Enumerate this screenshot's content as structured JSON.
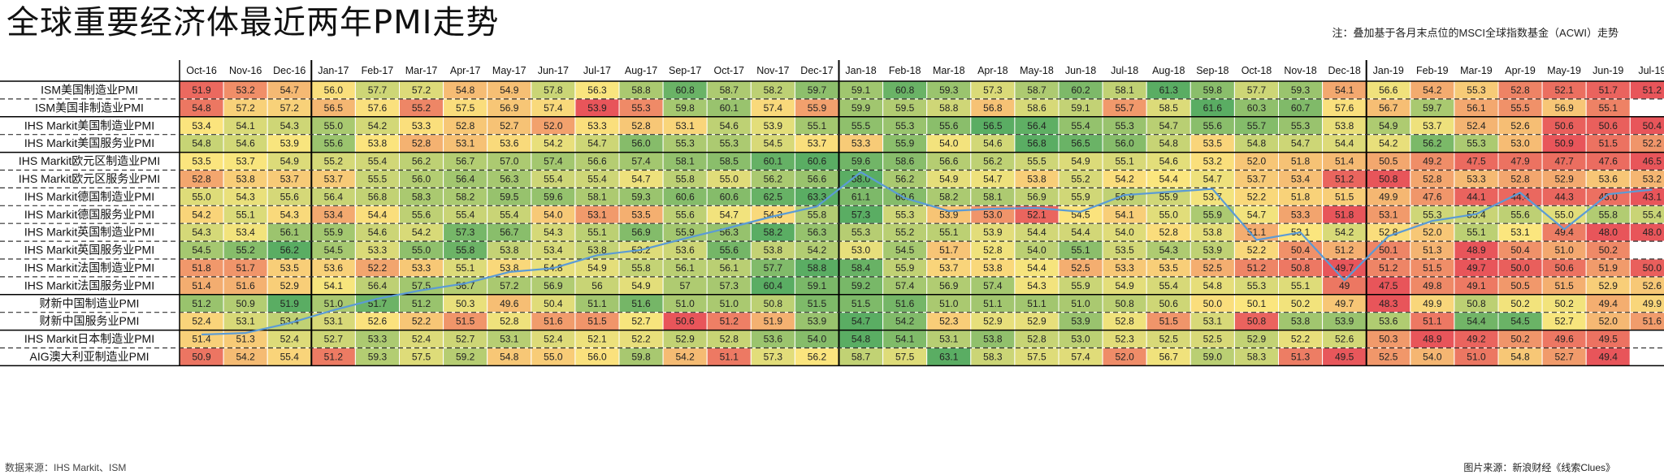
{
  "title": "全球重要经济体最近两年PMI走势",
  "note": "注：叠加基于各月末点位的MSCI全球指数基金（ACWI）走势",
  "source_left": "数据来源：IHS Markit、ISM",
  "source_right": "图片来源：新浪财经《线索Clues》",
  "colors": {
    "low": "#e8555a",
    "mid": "#fbe67e",
    "high": "#5aad63",
    "line": "#5b9bd5"
  },
  "chart_data": {
    "type": "heatmap",
    "columns": [
      "Oct-16",
      "Nov-16",
      "Dec-16",
      "Jan-17",
      "Feb-17",
      "Mar-17",
      "Apr-17",
      "May-17",
      "Jun-17",
      "Jul-17",
      "Aug-17",
      "Sep-17",
      "Oct-17",
      "Nov-17",
      "Dec-17",
      "Jan-18",
      "Feb-18",
      "Mar-18",
      "Apr-18",
      "May-18",
      "Jun-18",
      "Jul-18",
      "Aug-18",
      "Sep-18",
      "Oct-18",
      "Nov-18",
      "Dec-18",
      "Jan-19",
      "Feb-19",
      "Mar-19",
      "Apr-19",
      "May-19",
      "Jun-19",
      "Jul-19"
    ],
    "rows": [
      {
        "label": "ISM美国制造业PMI",
        "values": [
          "51.9",
          "53.2",
          "54.7",
          "56.0",
          "57.7",
          "57.2",
          "54.8",
          "54.9",
          "57.8",
          "56.3",
          "58.8",
          "60.8",
          "58.7",
          "58.2",
          "59.7",
          "59.1",
          "60.8",
          "59.3",
          "57.3",
          "58.7",
          "60.2",
          "58.1",
          "61.3",
          "59.8",
          "57.7",
          "59.3",
          "54.1",
          "56.6",
          "54.2",
          "55.3",
          "52.8",
          "52.1",
          "51.7",
          "51.2"
        ]
      },
      {
        "label": "ISM美国非制造业PMI",
        "values": [
          "54.8",
          "57.2",
          "57.2",
          "56.5",
          "57.6",
          "55.2",
          "57.5",
          "56.9",
          "57.4",
          "53.9",
          "55.3",
          "59.8",
          "60.1",
          "57.4",
          "55.9",
          "59.9",
          "59.5",
          "58.8",
          "56.8",
          "58.6",
          "59.1",
          "55.7",
          "58.5",
          "61.6",
          "60.3",
          "60.7",
          "57.6",
          "56.7",
          "59.7",
          "56.1",
          "55.5",
          "56.9",
          "55.1",
          ""
        ]
      },
      {
        "label": "IHS Markit美国制造业PMI",
        "values": [
          "53.4",
          "54.1",
          "54.3",
          "55.0",
          "54.2",
          "53.3",
          "52.8",
          "52.7",
          "52.0",
          "53.3",
          "52.8",
          "53.1",
          "54.6",
          "53.9",
          "55.1",
          "55.5",
          "55.3",
          "55.6",
          "56.5",
          "56.4",
          "55.4",
          "55.3",
          "54.7",
          "55.6",
          "55.7",
          "55.3",
          "53.8",
          "54.9",
          "53.7",
          "52.4",
          "52.6",
          "50.6",
          "50.6",
          "50.4"
        ]
      },
      {
        "label": "IHS Markit美国服务业PMI",
        "values": [
          "54.8",
          "54.6",
          "53.9",
          "55.6",
          "53.8",
          "52.8",
          "53.1",
          "53.6",
          "54.2",
          "54.7",
          "56.0",
          "55.3",
          "55.3",
          "54.5",
          "53.7",
          "53.3",
          "55.9",
          "54.0",
          "54.6",
          "56.8",
          "56.5",
          "56.0",
          "54.8",
          "53.5",
          "54.8",
          "54.7",
          "54.4",
          "54.2",
          "56.2",
          "55.3",
          "53.0",
          "50.9",
          "51.5",
          "52.2"
        ]
      },
      {
        "label": "IHS Markit欧元区制造业PMI",
        "values": [
          "53.5",
          "53.7",
          "54.9",
          "55.2",
          "55.4",
          "56.2",
          "56.7",
          "57.0",
          "57.4",
          "56.6",
          "57.4",
          "58.1",
          "58.5",
          "60.1",
          "60.6",
          "59.6",
          "58.6",
          "56.6",
          "56.2",
          "55.5",
          "54.9",
          "55.1",
          "54.6",
          "53.2",
          "52.0",
          "51.8",
          "51.4",
          "50.5",
          "49.2",
          "47.5",
          "47.9",
          "47.7",
          "47.6",
          "46.5"
        ]
      },
      {
        "label": "IHS Markit欧元区服务业PMI",
        "values": [
          "52.8",
          "53.8",
          "53.7",
          "53.7",
          "55.5",
          "56.0",
          "56.4",
          "56.3",
          "55.4",
          "55.4",
          "54.7",
          "55.8",
          "55.0",
          "56.2",
          "56.6",
          "58.0",
          "56.2",
          "54.9",
          "54.7",
          "53.8",
          "55.2",
          "54.2",
          "54.4",
          "54.7",
          "53.7",
          "53.4",
          "51.2",
          "50.8",
          "52.8",
          "53.3",
          "52.8",
          "52.9",
          "53.6",
          "53.2"
        ]
      },
      {
        "label": "IHS Markit德国制造业PMI",
        "values": [
          "55.0",
          "54.3",
          "55.6",
          "56.4",
          "56.8",
          "58.3",
          "58.2",
          "59.5",
          "59.6",
          "58.1",
          "59.3",
          "60.6",
          "60.6",
          "62.5",
          "63.3",
          "61.1",
          "60.6",
          "58.2",
          "58.1",
          "56.9",
          "55.9",
          "56.9",
          "55.9",
          "53.7",
          "52.2",
          "51.8",
          "51.5",
          "49.9",
          "47.6",
          "44.1",
          "44.4",
          "44.3",
          "45.0",
          "43.1"
        ]
      },
      {
        "label": "IHS Markit德国服务业PMI",
        "values": [
          "54.2",
          "55.1",
          "54.3",
          "53.4",
          "54.4",
          "55.6",
          "55.4",
          "55.4",
          "54.0",
          "53.1",
          "53.5",
          "55.6",
          "54.7",
          "54.3",
          "55.8",
          "57.3",
          "55.3",
          "53.9",
          "53.0",
          "52.1",
          "54.5",
          "54.1",
          "55.0",
          "55.9",
          "54.7",
          "53.3",
          "51.8",
          "53.1",
          "55.3",
          "55.4",
          "55.6",
          "55.0",
          "55.8",
          "55.4"
        ]
      },
      {
        "label": "IHS Markit英国制造业PMI",
        "values": [
          "54.3",
          "53.4",
          "56.1",
          "55.9",
          "54.6",
          "54.2",
          "57.3",
          "56.7",
          "54.3",
          "55.1",
          "56.9",
          "55.9",
          "56.3",
          "58.2",
          "56.3",
          "55.3",
          "55.2",
          "55.1",
          "53.9",
          "54.4",
          "54.4",
          "54.0",
          "52.8",
          "53.8",
          "51.1",
          "53.1",
          "54.2",
          "52.8",
          "52.0",
          "55.1",
          "53.1",
          "49.4",
          "48.0",
          "48.0"
        ]
      },
      {
        "label": "IHS Markit英国服务业PMI",
        "values": [
          "54.5",
          "55.2",
          "56.2",
          "54.5",
          "53.3",
          "55.0",
          "55.8",
          "53.8",
          "53.4",
          "53.8",
          "53.2",
          "53.6",
          "55.6",
          "53.8",
          "54.2",
          "53.0",
          "54.5",
          "51.7",
          "52.8",
          "54.0",
          "55.1",
          "53.5",
          "54.3",
          "53.9",
          "52.2",
          "50.4",
          "51.2",
          "50.1",
          "51.3",
          "48.9",
          "50.4",
          "51.0",
          "50.2",
          ""
        ]
      },
      {
        "label": "IHS Markit法国制造业PMI",
        "values": [
          "51.8",
          "51.7",
          "53.5",
          "53.6",
          "52.2",
          "53.3",
          "55.1",
          "53.8",
          "54.8",
          "54.9",
          "55.8",
          "56.1",
          "56.1",
          "57.7",
          "58.8",
          "58.4",
          "55.9",
          "53.7",
          "53.8",
          "54.4",
          "52.5",
          "53.3",
          "53.5",
          "52.5",
          "51.2",
          "50.8",
          "49.7",
          "51.2",
          "51.5",
          "49.7",
          "50.0",
          "50.6",
          "51.9",
          "50.0"
        ]
      },
      {
        "label": "IHS Markit法国服务业PMI",
        "values": [
          "51.4",
          "51.6",
          "52.9",
          "54.1",
          "56.4",
          "57.5",
          "56.7",
          "57.2",
          "56.9",
          "56",
          "54.9",
          "57",
          "57.3",
          "60.4",
          "59.1",
          "59.2",
          "57.4",
          "56.9",
          "57.4",
          "54.3",
          "55.9",
          "54.9",
          "55.4",
          "54.8",
          "55.3",
          "55.1",
          "49",
          "47.5",
          "49.8",
          "49.1",
          "50.5",
          "51.5",
          "52.9",
          "52.6"
        ]
      },
      {
        "label": "财新中国制造业PMI",
        "values": [
          "51.2",
          "50.9",
          "51.9",
          "51.0",
          "51.7",
          "51.2",
          "50.3",
          "49.6",
          "50.4",
          "51.1",
          "51.6",
          "51.0",
          "51.0",
          "50.8",
          "51.5",
          "51.5",
          "51.6",
          "51.0",
          "51.1",
          "51.1",
          "51.0",
          "50.8",
          "50.6",
          "50.0",
          "50.1",
          "50.2",
          "49.7",
          "48.3",
          "49.9",
          "50.8",
          "50.2",
          "50.2",
          "49.4",
          "49.9"
        ]
      },
      {
        "label": "财新中国服务业PMI",
        "values": [
          "52.4",
          "53.1",
          "53.4",
          "53.1",
          "52.6",
          "52.2",
          "51.5",
          "52.8",
          "51.6",
          "51.5",
          "52.7",
          "50.6",
          "51.2",
          "51.9",
          "53.9",
          "54.7",
          "54.2",
          "52.3",
          "52.9",
          "52.9",
          "53.9",
          "52.8",
          "51.5",
          "53.1",
          "50.8",
          "53.8",
          "53.9",
          "53.6",
          "51.1",
          "54.4",
          "54.5",
          "52.7",
          "52.0",
          "51.6"
        ]
      },
      {
        "label": "IHS Markit日本制造业PMI",
        "values": [
          "51.4",
          "51.3",
          "52.4",
          "52.7",
          "53.3",
          "52.4",
          "52.7",
          "53.1",
          "52.4",
          "52.1",
          "52.2",
          "52.9",
          "52.8",
          "53.6",
          "54.0",
          "54.8",
          "54.1",
          "53.1",
          "53.8",
          "52.8",
          "53.0",
          "52.3",
          "52.5",
          "52.5",
          "52.9",
          "52.2",
          "52.6",
          "50.3",
          "48.9",
          "49.2",
          "50.2",
          "49.6",
          "49.5",
          ""
        ]
      },
      {
        "label": "AIG澳大利亚制造业PMI",
        "values": [
          "50.9",
          "54.2",
          "55.4",
          "51.2",
          "59.3",
          "57.5",
          "59.2",
          "54.8",
          "55.0",
          "56.0",
          "59.8",
          "54.2",
          "51.1",
          "57.3",
          "56.2",
          "58.7",
          "57.5",
          "63.1",
          "58.3",
          "57.5",
          "57.4",
          "52.0",
          "56.7",
          "59.0",
          "58.3",
          "51.3",
          "49.5",
          "52.5",
          "54.0",
          "51.0",
          "54.8",
          "52.7",
          "49.4",
          ""
        ]
      }
    ],
    "overlay": {
      "series_name": "ACWI",
      "values": [
        61.8,
        62.0,
        63.3,
        65.0,
        66.5,
        67.6,
        68.5,
        70.0,
        70.5,
        72.2,
        72.9,
        74.4,
        75.8,
        77.3,
        78.6,
        83.1,
        79.7,
        78.0,
        78.3,
        78.4,
        77.9,
        80.1,
        80.5,
        80.9,
        74.2,
        75.2,
        68.9,
        74.7,
        76.7,
        77.6,
        80.4,
        75.6,
        80.2,
        80.8
      ]
    }
  }
}
